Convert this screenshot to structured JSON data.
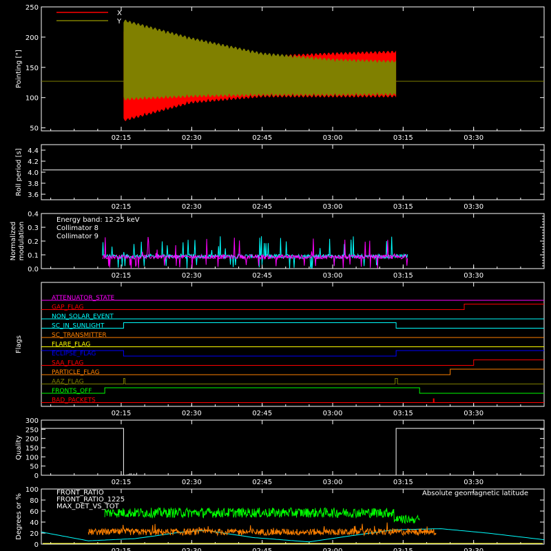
{
  "chart_data": [
    {
      "id": "pointing",
      "type": "line",
      "ylabel": "Pointing [\"]",
      "ylim": [
        45,
        250
      ],
      "yticks": [
        50,
        100,
        150,
        200,
        250
      ],
      "xticks": [
        "02:15",
        "02:30",
        "02:45",
        "03:00",
        "03:15",
        "03:30"
      ],
      "xtick_minutes": [
        135,
        150,
        165,
        180,
        195,
        210
      ],
      "xlim_minutes": [
        118,
        225
      ],
      "legend": [
        {
          "name": "X",
          "color": "#ff0000"
        },
        {
          "name": "Y",
          "color": "#808000"
        }
      ],
      "baseline": 127,
      "oscillation_start_minute": 135.5,
      "oscillation_end_minute": 193.5,
      "series": [
        {
          "name": "X",
          "color": "#ff0000",
          "envelope_minutes": [
            135.5,
            150,
            165,
            180,
            193.5
          ],
          "upper": [
            215,
            175,
            170,
            175,
            178
          ],
          "lower": [
            60,
            90,
            100,
            100,
            100
          ]
        },
        {
          "name": "Y",
          "color": "#808000",
          "envelope_minutes": [
            135.5,
            150,
            165,
            180,
            193.5
          ],
          "upper": [
            230,
            200,
            175,
            165,
            162
          ],
          "lower": [
            95,
            100,
            102,
            102,
            103
          ]
        }
      ]
    },
    {
      "id": "roll",
      "type": "line",
      "ylabel": "Roll period [s]",
      "ylim": [
        3.5,
        4.5
      ],
      "yticks": [
        "3.6",
        "3.8",
        "4.0",
        "4.2",
        "4.4"
      ],
      "ytick_values": [
        3.6,
        3.8,
        4.0,
        4.2,
        4.4
      ],
      "xticks": [
        "02:15",
        "02:30",
        "02:45",
        "03:00",
        "03:15",
        "03:30"
      ],
      "series": [
        {
          "name": "roll",
          "color": "#ffffff",
          "value": 4.04
        }
      ]
    },
    {
      "id": "modulation",
      "type": "line",
      "ylabel": "Normalized modulation",
      "ylabel_lines": [
        "Normalized",
        "modulation"
      ],
      "ylim": [
        0.0,
        0.4
      ],
      "yticks": [
        "0.0",
        "0.1",
        "0.2",
        "0.3",
        "0.4"
      ],
      "ytick_values": [
        0.0,
        0.1,
        0.2,
        0.3,
        0.4
      ],
      "xticks": [
        "02:15",
        "02:30",
        "02:45",
        "03:00",
        "03:15",
        "03:30"
      ],
      "annotation": "Energy band: 12-25 keV",
      "data_range_minutes": [
        131,
        196
      ],
      "series": [
        {
          "name": "Collimator 8",
          "color": "#00ffff",
          "mean": 0.09
        },
        {
          "name": "Collimator 9",
          "color": "#ff00ff",
          "mean": 0.085
        }
      ]
    },
    {
      "id": "flags",
      "type": "line",
      "ylabel": "Flags",
      "xticks": [
        "02:15",
        "02:30",
        "02:45",
        "03:00",
        "03:15",
        "03:30"
      ],
      "flags": [
        {
          "name": "ATTENUATOR_STATE",
          "color": "#ff00ff",
          "steps": [
            [
              118,
              0
            ]
          ]
        },
        {
          "name": "GAP_FLAG",
          "color": "#ff0000",
          "steps": [
            [
              118,
              0
            ],
            [
              208,
              1
            ]
          ]
        },
        {
          "name": "NON_SOLAR_EVENT",
          "color": "#00ffff",
          "steps": [
            [
              118,
              0
            ]
          ]
        },
        {
          "name": "SC_IN_SUNLIGHT",
          "color": "#00ffff",
          "steps": [
            [
              118,
              0
            ],
            [
              135.5,
              1
            ],
            [
              193.5,
              0
            ]
          ]
        },
        {
          "name": "SC_TRANSMITTER",
          "color": "#ff8000",
          "steps": [
            [
              118,
              0
            ]
          ]
        },
        {
          "name": "FLARE_FLAG",
          "color": "#ffff00",
          "steps": [
            [
              118,
              0
            ]
          ]
        },
        {
          "name": "ECLIPSE_FLAG",
          "color": "#0000ff",
          "steps": [
            [
              118,
              1
            ],
            [
              135.5,
              0
            ],
            [
              193.5,
              1
            ]
          ]
        },
        {
          "name": "SAA_FLAG",
          "color": "#ff0000",
          "steps": [
            [
              118,
              0
            ],
            [
              210,
              1
            ]
          ]
        },
        {
          "name": "PARTICLE_FLAG",
          "color": "#ff8000",
          "steps": [
            [
              118,
              0
            ],
            [
              205,
              1
            ]
          ]
        },
        {
          "name": "AAZ_FLAG",
          "color": "#808000",
          "steps": [
            [
              118,
              0
            ],
            [
              135.5,
              1
            ],
            [
              135.8,
              0
            ],
            [
              193.3,
              1
            ],
            [
              193.8,
              0
            ]
          ]
        },
        {
          "name": "FRONTS_OFF",
          "color": "#00ff00",
          "steps": [
            [
              118,
              0
            ],
            [
              131.5,
              1
            ],
            [
              198.5,
              0
            ]
          ]
        },
        {
          "name": "BAD_PACKETS",
          "color": "#ff0000",
          "steps": [
            [
              118,
              0
            ]
          ],
          "spikes": [
            201.5
          ]
        }
      ]
    },
    {
      "id": "quality",
      "type": "line",
      "ylabel": "Quality",
      "ylim": [
        0,
        300
      ],
      "yticks": [
        "0",
        "50",
        "100",
        "150",
        "200",
        "250",
        "300"
      ],
      "ytick_values": [
        0,
        50,
        100,
        150,
        200,
        250,
        300
      ],
      "xticks": [
        "02:15",
        "02:30",
        "02:45",
        "03:00",
        "03:15",
        "03:30"
      ],
      "series": [
        {
          "name": "quality",
          "color": "#ffffff",
          "steps": [
            [
              118,
              255
            ],
            [
              135.5,
              0
            ],
            [
              193.5,
              255
            ],
            [
              225,
              255
            ]
          ]
        }
      ]
    },
    {
      "id": "ratios",
      "type": "line",
      "ylabel": "Degrees or %",
      "ylim": [
        0,
        100
      ],
      "yticks": [
        "0",
        "20",
        "40",
        "60",
        "80",
        "100"
      ],
      "ytick_values": [
        0,
        20,
        40,
        60,
        80,
        100
      ],
      "xticks": [
        "02:15",
        "02:30",
        "02:45",
        "03:00",
        "03:15",
        "03:30"
      ],
      "series": [
        {
          "name": "FRONT_RATIO",
          "color": "#ffff00",
          "mean": 0
        },
        {
          "name": "FRONT_RATIO_1225",
          "color": "#00ff00",
          "mean": 57,
          "range_minutes": [
            131.5,
            198.5
          ]
        },
        {
          "name": "MAX_DET_VS_TOT",
          "color": "#ff8000",
          "mean": 22,
          "range_minutes": [
            128,
            202
          ]
        }
      ],
      "latitude": {
        "name": "Absolute geomagnetic latitude",
        "color": "#00ffff",
        "minutes": [
          118,
          128,
          138,
          148,
          153,
          163,
          175,
          183,
          193,
          203,
          213,
          225
        ],
        "values": [
          22,
          6,
          10,
          22,
          25,
          12,
          4,
          14,
          26,
          28,
          20,
          8
        ]
      }
    }
  ]
}
